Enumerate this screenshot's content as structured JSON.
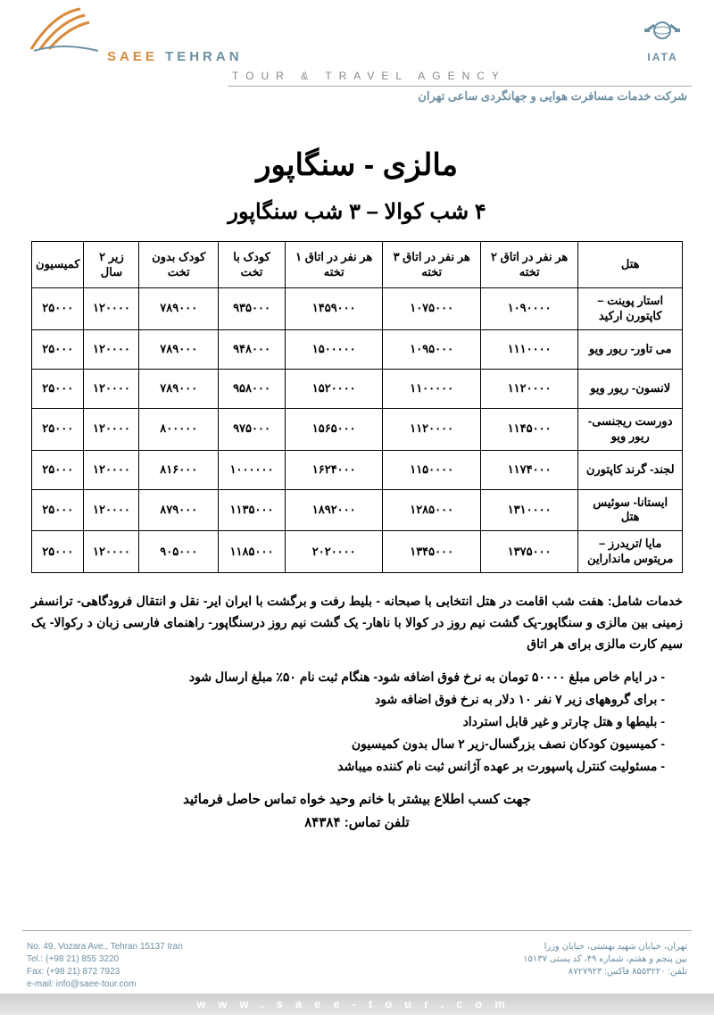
{
  "header": {
    "brand_en_accent": "SAEE",
    "brand_en_rest": " TEHRAN",
    "tagline_en": "TOUR & TRAVEL AGENCY",
    "company_fa": "شرکت خدمات مسافرت هوایی و جهانگردی ساعی تهران",
    "iata_label": "IATA",
    "colors": {
      "brand_blue": "#6b8fa3",
      "brand_orange": "#d98a3b",
      "gray": "#888888"
    }
  },
  "document": {
    "title": "مالزی  -  سنگاپور",
    "subtitle": "۴ شب کوالا – ۳ شب سنگاپور"
  },
  "table": {
    "columns": [
      "هتل",
      "هر نفر در اتاق ۲ تخته",
      "هر نفر در اتاق ۳ تخته",
      "هر نفر در اتاق ۱ تخته",
      "کودک با تخت",
      "کودک بدون تخت",
      "زیر ۲ سال",
      "کمیسیون"
    ],
    "rows": [
      [
        "استار پوینت – کاپتورن ارکید",
        "۱۰۹۰۰۰۰",
        "۱۰۷۵۰۰۰",
        "۱۴۵۹۰۰۰",
        "۹۳۵۰۰۰",
        "۷۸۹۰۰۰",
        "۱۲۰۰۰۰",
        "۲۵۰۰۰"
      ],
      [
        "می تاور- ریور ویو",
        "۱۱۱۰۰۰۰",
        "۱۰۹۵۰۰۰",
        "۱۵۰۰۰۰۰",
        "۹۴۸۰۰۰",
        "۷۸۹۰۰۰",
        "۱۲۰۰۰۰",
        "۲۵۰۰۰"
      ],
      [
        "لانسون- ریور ویو",
        "۱۱۲۰۰۰۰",
        "۱۱۰۰۰۰۰",
        "۱۵۲۰۰۰۰",
        "۹۵۸۰۰۰",
        "۷۸۹۰۰۰",
        "۱۲۰۰۰۰",
        "۲۵۰۰۰"
      ],
      [
        "دورست ریجنسی- ریور ویو",
        "۱۱۴۵۰۰۰",
        "۱۱۲۰۰۰۰",
        "۱۵۶۵۰۰۰",
        "۹۷۵۰۰۰",
        "۸۰۰۰۰۰",
        "۱۲۰۰۰۰",
        "۲۵۰۰۰"
      ],
      [
        "لجند- گرند کاپتورن",
        "۱۱۷۴۰۰۰",
        "۱۱۵۰۰۰۰",
        "۱۶۲۴۰۰۰",
        "۱۰۰۰۰۰۰",
        "۸۱۶۰۰۰",
        "۱۲۰۰۰۰",
        "۲۵۰۰۰"
      ],
      [
        "ایستانا- سوئیس هتل",
        "۱۳۱۰۰۰۰",
        "۱۲۸۵۰۰۰",
        "۱۸۹۲۰۰۰",
        "۱۱۳۵۰۰۰",
        "۸۷۹۰۰۰",
        "۱۲۰۰۰۰",
        "۲۵۰۰۰"
      ],
      [
        "مایا /تریدرز – مریتوس مانداراین",
        "۱۳۷۵۰۰۰",
        "۱۳۴۵۰۰۰",
        "۲۰۲۰۰۰۰",
        "۱۱۸۵۰۰۰",
        "۹۰۵۰۰۰",
        "۱۲۰۰۰۰",
        "۲۵۰۰۰"
      ]
    ],
    "border_color": "#000000",
    "font_size": 13
  },
  "services": "خدمات شامل: هفت شب اقامت در هتل انتخابی با صبحانه - بلیط رفت و برگشت با ایران ایر- نقل و انتقال فرودگاهی- ترانسفر زمینی بین مالزی و سنگاپور-یک گشت نیم روز در کوالا با ناهار- یک گشت نیم روز درسنگاپور- راهنمای فارسی زبان د رکوالا- یک سیم کارت مالزی برای هر اتاق",
  "notes": [
    "در ایام خاص مبلغ ۵۰۰۰۰ تومان به نرخ فوق اضافه شود- هنگام ثبت نام ۵۰٪ مبلغ ارسال شود",
    "برای گروههای زیر ۷ نفر ۱۰ دلار به نرخ فوق اضافه شود",
    "بلیطها و هتل چارتر و غیر قابل استرداد",
    "کمیسیون کودکان نصف بزرگسال-زیر ۲ سال بدون کمیسیون",
    "مسئولیت کنترل پاسپورت بر عهده آژانس ثبت نام کننده میباشد"
  ],
  "contact": {
    "line1": "جهت کسب اطلاع بیشتر با خانم وحید خواه تماس حاصل فرمائید",
    "line2": "تلفن تماس: ۸۴۳۸۴"
  },
  "footer": {
    "left": [
      "No. 49, Vozara Ave., Tehran 15137 Iran",
      "Tel.: (+98 21) 855 3220",
      "Fax: (+98 21) 872 7923",
      "e-mail: info@saee-tour.com"
    ],
    "right": [
      "تهران، خیابان شهید بهشتی، خیابان وزرا",
      "بین پنجم و هفتم، شماره ۴۹، کد پستی ۱۵۱۳۷",
      "تلفن: ۸۵۵۳۲۲۰   فاکس: ۸۷۲۷۹۲۳"
    ],
    "url": "www.saee-tour.com"
  }
}
